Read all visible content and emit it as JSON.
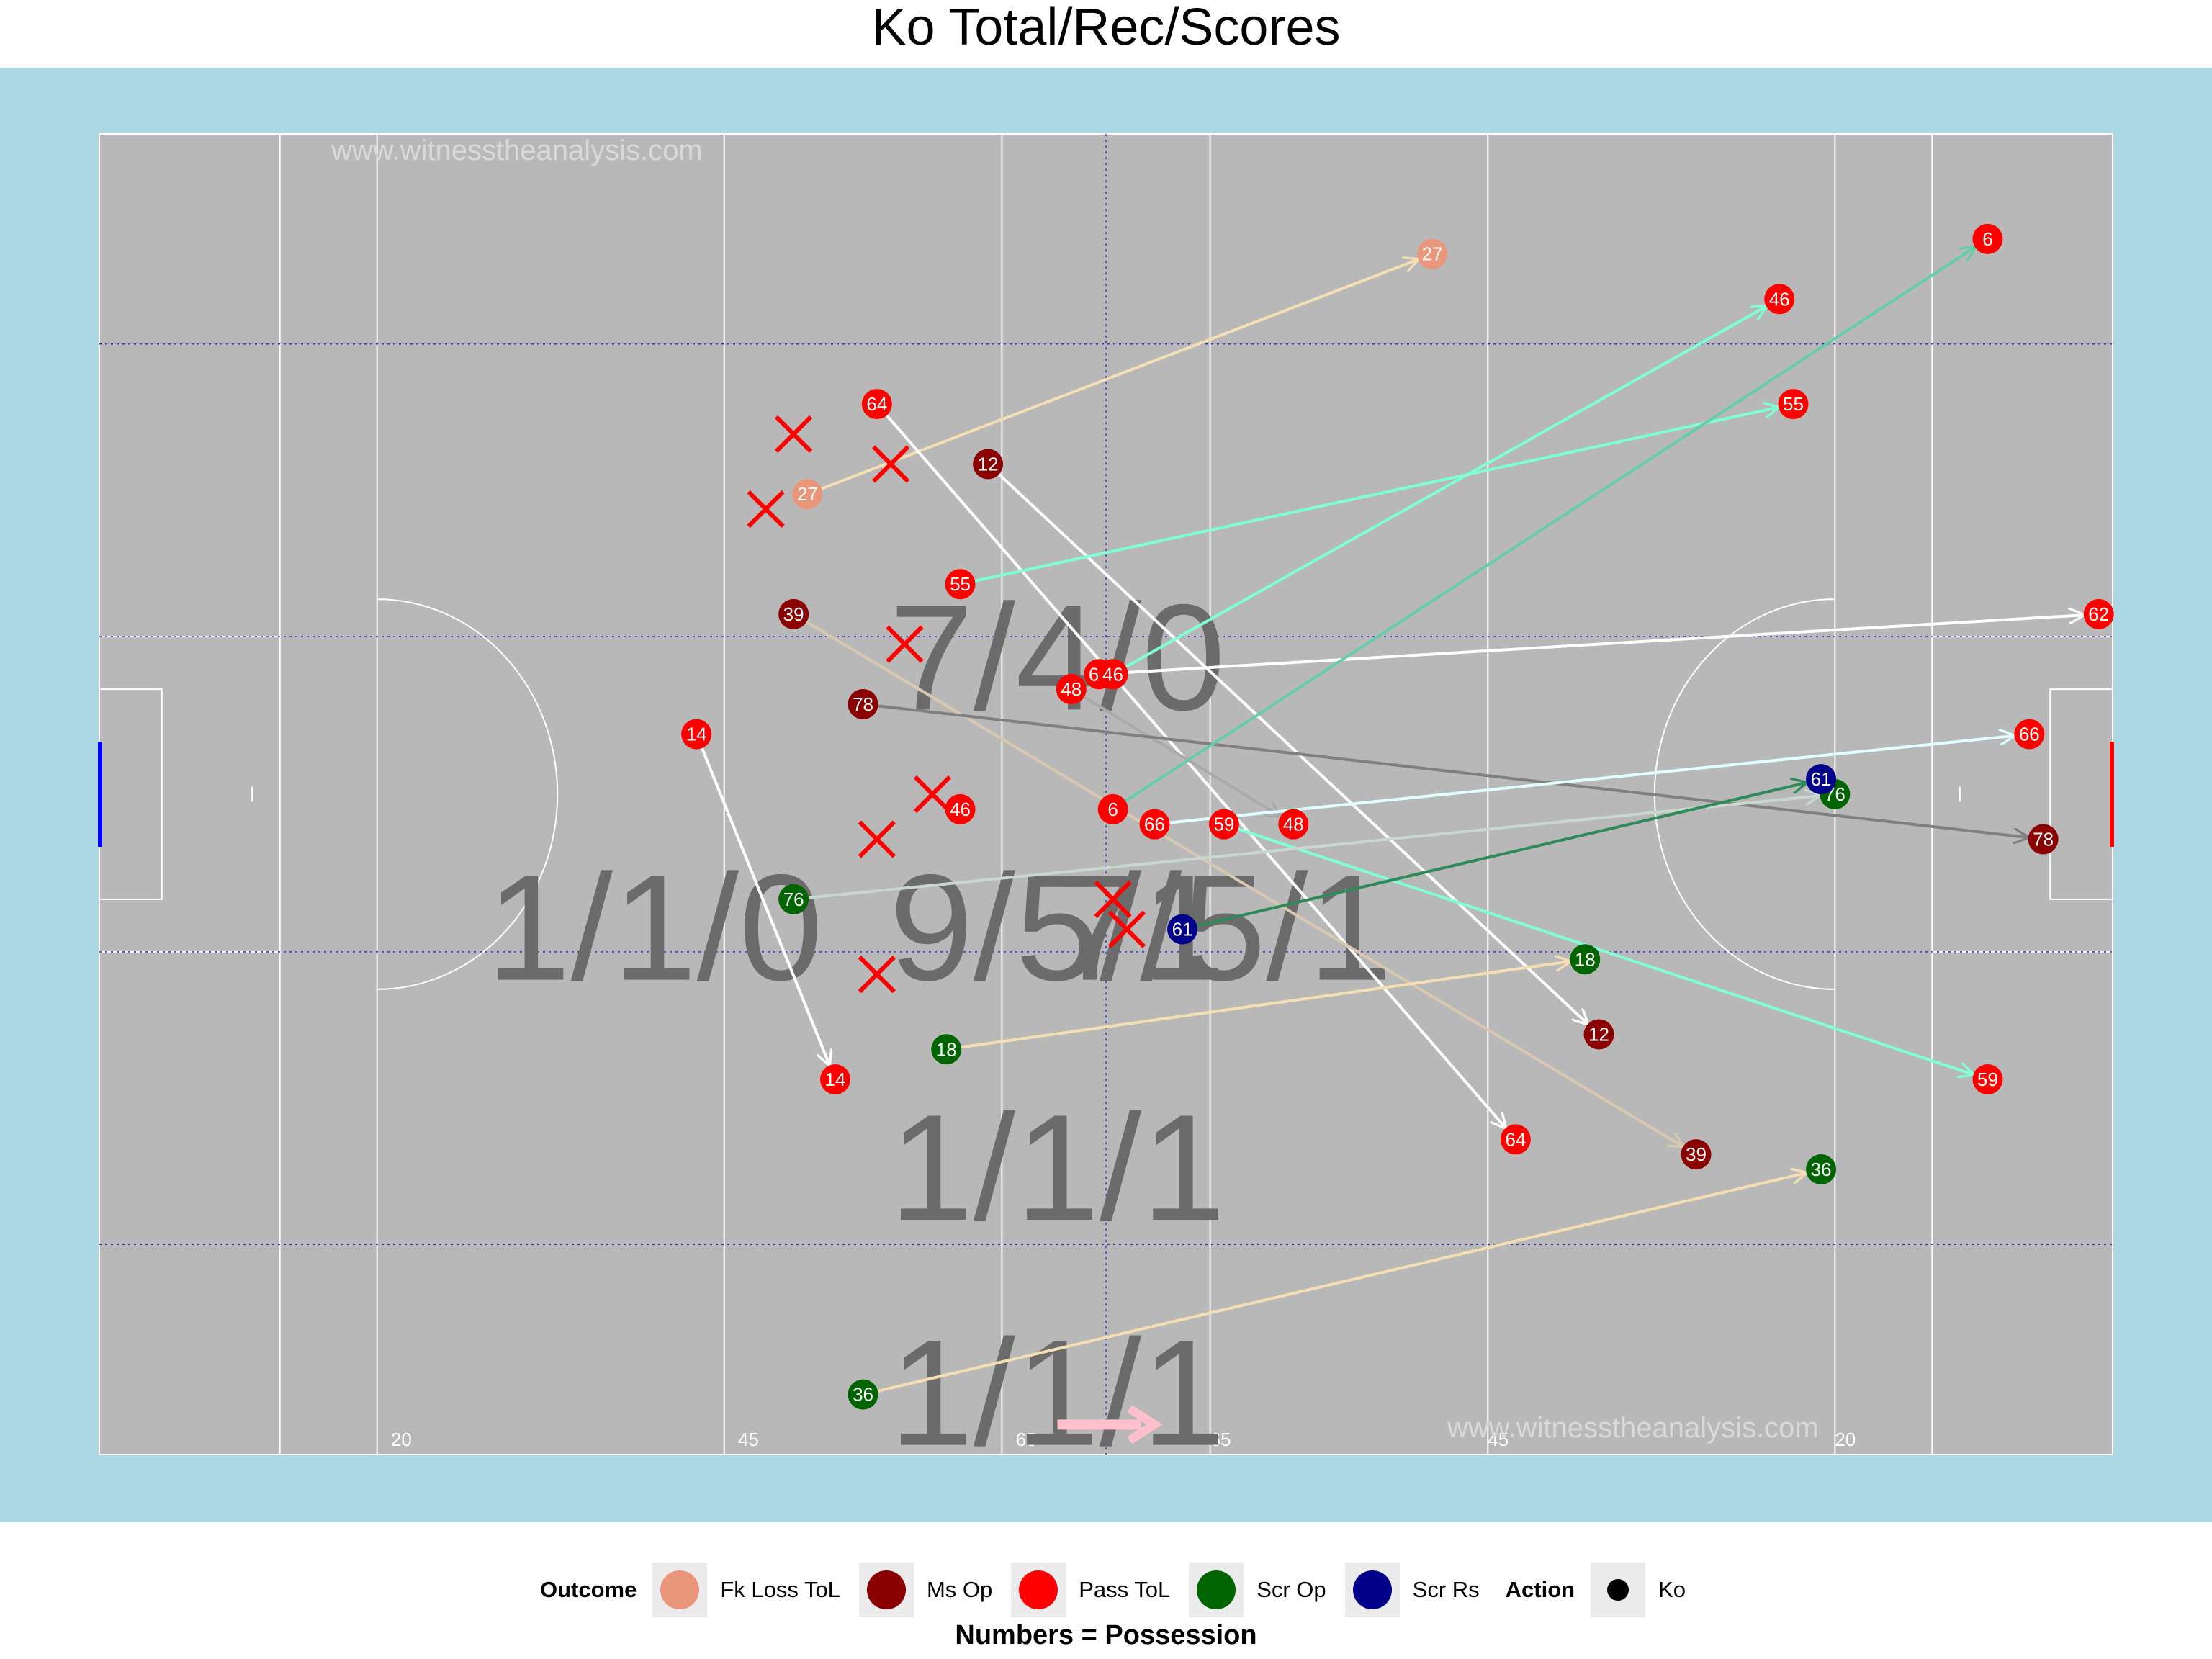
{
  "title": "Ko Total/Rec/Scores",
  "watermarks": [
    "www.witnesstheanalysis.com",
    "www.witnesstheanalysis.com"
  ],
  "yard_labels": [
    "20",
    "45",
    "65",
    "65",
    "45",
    "20"
  ],
  "zone_totals": [
    {
      "text": "7/4/0",
      "x": 69,
      "y": 53
    },
    {
      "text": "1/1/0",
      "x": 40,
      "y": 35
    },
    {
      "text": "9/5/1",
      "x": 69,
      "y": 35
    },
    {
      "text": "7/5/1",
      "x": 81,
      "y": 35
    },
    {
      "text": "1/1/1",
      "x": 69,
      "y": 19
    },
    {
      "text": "1/1/1",
      "x": 69,
      "y": 4
    }
  ],
  "legend": {
    "outcome_title": "Outcome",
    "outcomes": [
      {
        "label": "Fk Loss ToL",
        "color": "#e9967a"
      },
      {
        "label": "Ms Op",
        "color": "#8b0000"
      },
      {
        "label": "Pass ToL",
        "color": "#ff0000"
      },
      {
        "label": "Scr Op",
        "color": "#006400"
      },
      {
        "label": "Scr Rs",
        "color": "#00008b"
      }
    ],
    "action_title": "Action",
    "actions": [
      {
        "label": "Ko",
        "color": "#000000"
      }
    ]
  },
  "caption": "Numbers = Possession",
  "chart_data": {
    "type": "scatter",
    "title": "Ko Total/Rec/Scores",
    "xlim": [
      0,
      145
    ],
    "ylim": [
      0,
      88
    ],
    "kicks": [
      {
        "possession": "27",
        "outcome": "Fk Loss ToL",
        "line_color": "#f5deb3",
        "x0": 51,
        "y0": 64,
        "x1": 96,
        "y1": 80
      },
      {
        "possession": "64",
        "outcome": "Pass ToL",
        "line_color": "#ffffff",
        "x0": 56,
        "y0": 70,
        "x1": 102,
        "y1": 21
      },
      {
        "possession": "12",
        "outcome": "Ms Op",
        "line_color": "#ffffff",
        "x0": 64,
        "y0": 66,
        "x1": 108,
        "y1": 28
      },
      {
        "possession": "55",
        "outcome": "Pass ToL",
        "line_color": "#7fffd4",
        "x0": 62,
        "y0": 58,
        "x1": 122,
        "y1": 70
      },
      {
        "possession": "39",
        "outcome": "Ms Op",
        "line_color": "#d8c8b0",
        "x0": 50,
        "y0": 56,
        "x1": 115,
        "y1": 20
      },
      {
        "possession": "62",
        "outcome": "Pass ToL",
        "line_color": "#ffffff",
        "x0": 72,
        "y0": 52,
        "x1": 144,
        "y1": 56
      },
      {
        "possession": "46",
        "outcome": "Pass ToL",
        "line_color": "#7fffd4",
        "x0": 73,
        "y0": 52,
        "x1": 121,
        "y1": 77
      },
      {
        "possession": "48",
        "outcome": "Pass ToL",
        "line_color": "#aaaaaa",
        "x0": 70,
        "y0": 51,
        "x1": 86,
        "y1": 42
      },
      {
        "possession": "78",
        "outcome": "Ms Op",
        "line_color": "#808080",
        "x0": 55,
        "y0": 50,
        "x1": 140,
        "y1": 41
      },
      {
        "possession": "14",
        "outcome": "Pass ToL",
        "line_color": "#ffffff",
        "x0": 43,
        "y0": 48,
        "x1": 53,
        "y1": 25
      },
      {
        "possession": "6",
        "outcome": "Pass ToL",
        "line_color": "#66cdaa",
        "x0": 73,
        "y0": 43,
        "x1": 136,
        "y1": 81
      },
      {
        "possession": "66",
        "outcome": "Pass ToL",
        "line_color": "#e0ffff",
        "x0": 76,
        "y0": 42,
        "x1": 139,
        "y1": 48
      },
      {
        "possession": "59",
        "outcome": "Pass ToL",
        "line_color": "#7fffd4",
        "x0": 81,
        "y0": 42,
        "x1": 136,
        "y1": 25
      },
      {
        "possession": "76",
        "outcome": "Scr Op",
        "line_color": "#c8d8d0",
        "x0": 50,
        "y0": 37,
        "x1": 125,
        "y1": 44
      },
      {
        "possession": "61",
        "outcome": "Scr Rs",
        "line_color": "#2e8b57",
        "x0": 78,
        "y0": 35,
        "x1": 124,
        "y1": 45
      },
      {
        "possession": "18",
        "outcome": "Scr Op",
        "line_color": "#f5deb3",
        "x0": 61,
        "y0": 27,
        "x1": 107,
        "y1": 33
      },
      {
        "possession": "36",
        "outcome": "Scr Op",
        "line_color": "#f5deb3",
        "x0": 55,
        "y0": 4,
        "x1": 124,
        "y1": 19
      }
    ],
    "unlabeled_points": [
      {
        "x": 62,
        "y": 43,
        "color": "#ff0000",
        "label": "46"
      }
    ],
    "markers_x": [
      {
        "x": 50,
        "y": 68
      },
      {
        "x": 48,
        "y": 63
      },
      {
        "x": 57,
        "y": 66
      },
      {
        "x": 58,
        "y": 54
      },
      {
        "x": 60,
        "y": 44
      },
      {
        "x": 56,
        "y": 41
      },
      {
        "x": 73,
        "y": 37
      },
      {
        "x": 74,
        "y": 35
      },
      {
        "x": 56,
        "y": 32
      }
    ]
  }
}
